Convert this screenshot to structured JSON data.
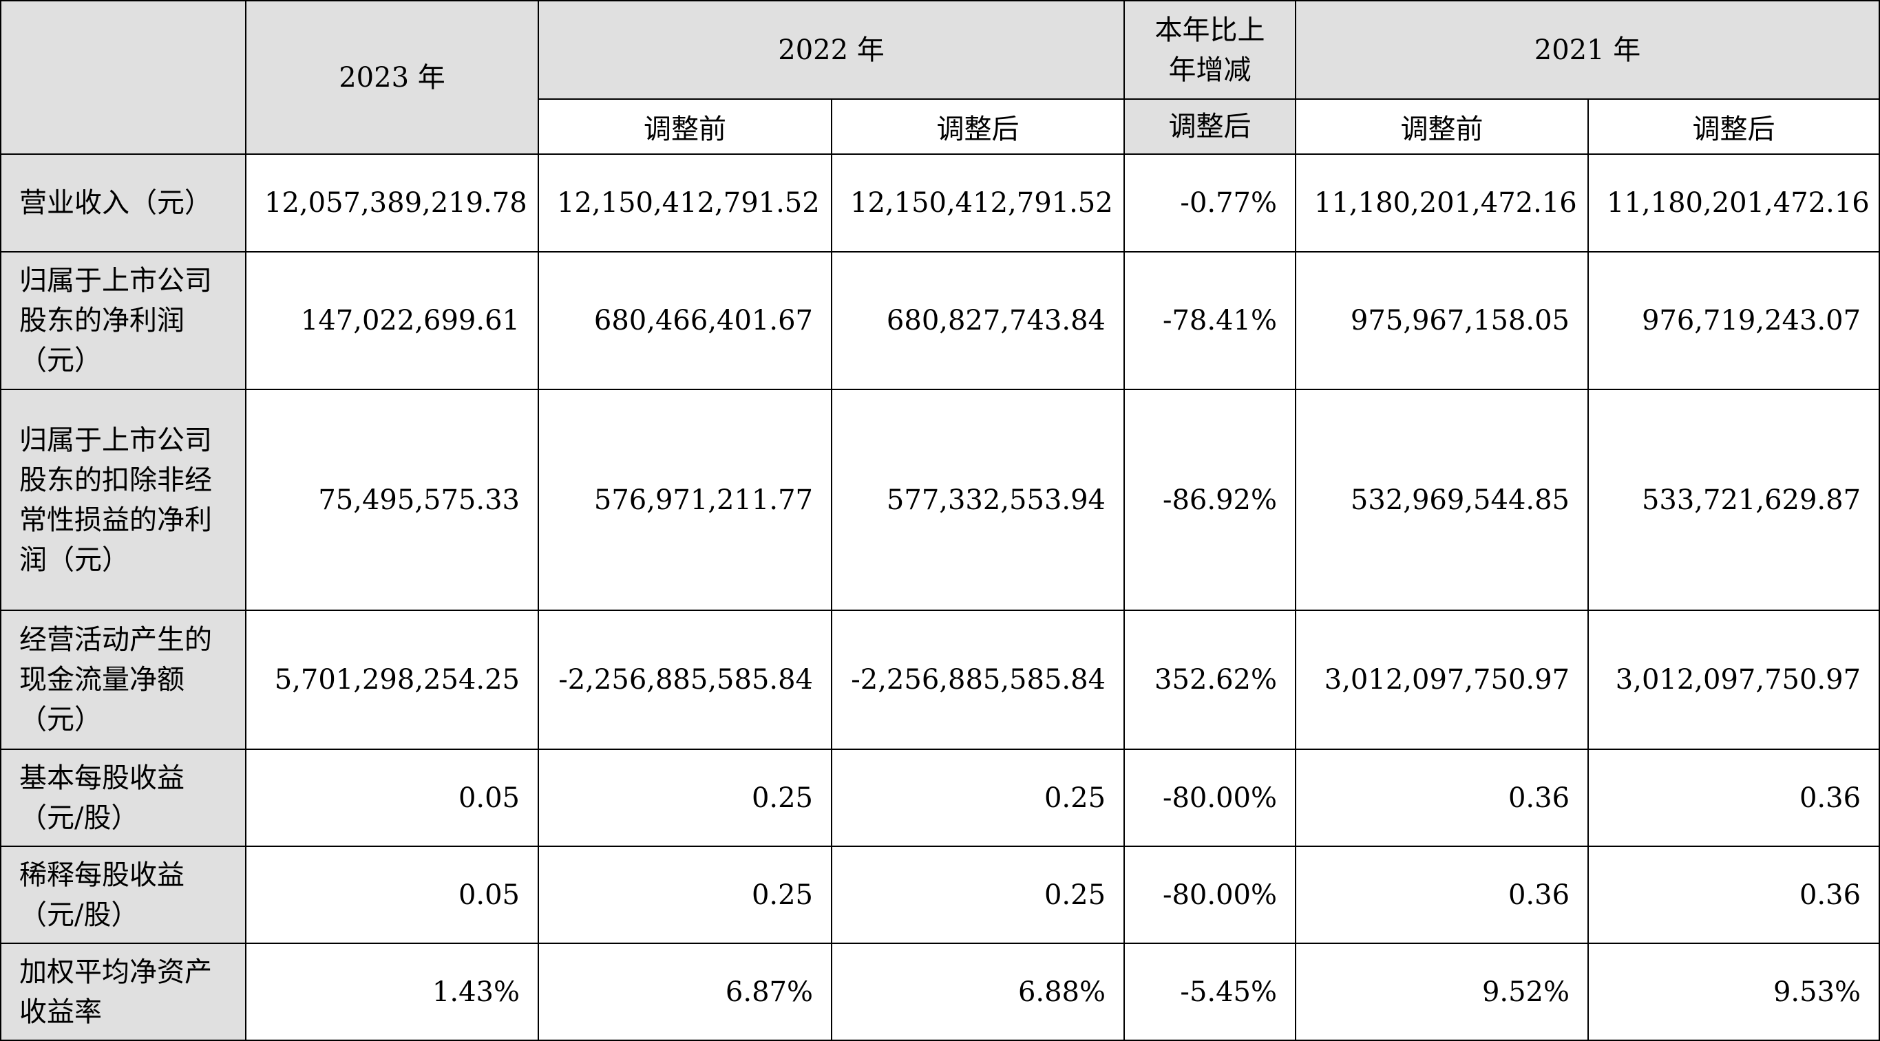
{
  "header": {
    "y2023": "2023 年",
    "y2022": "2022 年",
    "yoy": "本年比上年增减",
    "y2021": "2021 年",
    "before_2022": "调整前",
    "after_2022": "调整后",
    "after_yoy": "调整后",
    "before_2021": "调整前",
    "after_2021": "调整后"
  },
  "rows": [
    {
      "label": "营业收入（元）",
      "c2023": "12,057,389,219.78",
      "c2022_before": "12,150,412,791.52",
      "c2022_after": "12,150,412,791.52",
      "yoy": "-0.77%",
      "c2021_before": "11,180,201,472.16",
      "c2021_after": "11,180,201,472.16"
    },
    {
      "label": "归属于上市公司股东的净利润（元）",
      "c2023": "147,022,699.61",
      "c2022_before": "680,466,401.67",
      "c2022_after": "680,827,743.84",
      "yoy": "-78.41%",
      "c2021_before": "975,967,158.05",
      "c2021_after": "976,719,243.07"
    },
    {
      "label": "归属于上市公司股东的扣除非经常性损益的净利润（元）",
      "c2023": "75,495,575.33",
      "c2022_before": "576,971,211.77",
      "c2022_after": "577,332,553.94",
      "yoy": "-86.92%",
      "c2021_before": "532,969,544.85",
      "c2021_after": "533,721,629.87"
    },
    {
      "label": "经营活动产生的现金流量净额（元）",
      "c2023": "5,701,298,254.25",
      "c2022_before": "-2,256,885,585.84",
      "c2022_after": "-2,256,885,585.84",
      "yoy": "352.62%",
      "c2021_before": "3,012,097,750.97",
      "c2021_after": "3,012,097,750.97"
    },
    {
      "label": "基本每股收益（元/股）",
      "c2023": "0.05",
      "c2022_before": "0.25",
      "c2022_after": "0.25",
      "yoy": "-80.00%",
      "c2021_before": "0.36",
      "c2021_after": "0.36"
    },
    {
      "label": "稀释每股收益（元/股）",
      "c2023": "0.05",
      "c2022_before": "0.25",
      "c2022_after": "0.25",
      "yoy": "-80.00%",
      "c2021_before": "0.36",
      "c2021_after": "0.36"
    },
    {
      "label": "加权平均净资产收益率",
      "c2023": "1.43%",
      "c2022_before": "6.87%",
      "c2022_after": "6.88%",
      "yoy": "-5.45%",
      "c2021_before": "9.52%",
      "c2021_after": "9.53%"
    }
  ],
  "colors": {
    "header_bg": "#e0e0e0",
    "border": "#000000",
    "cell_bg": "#ffffff"
  }
}
